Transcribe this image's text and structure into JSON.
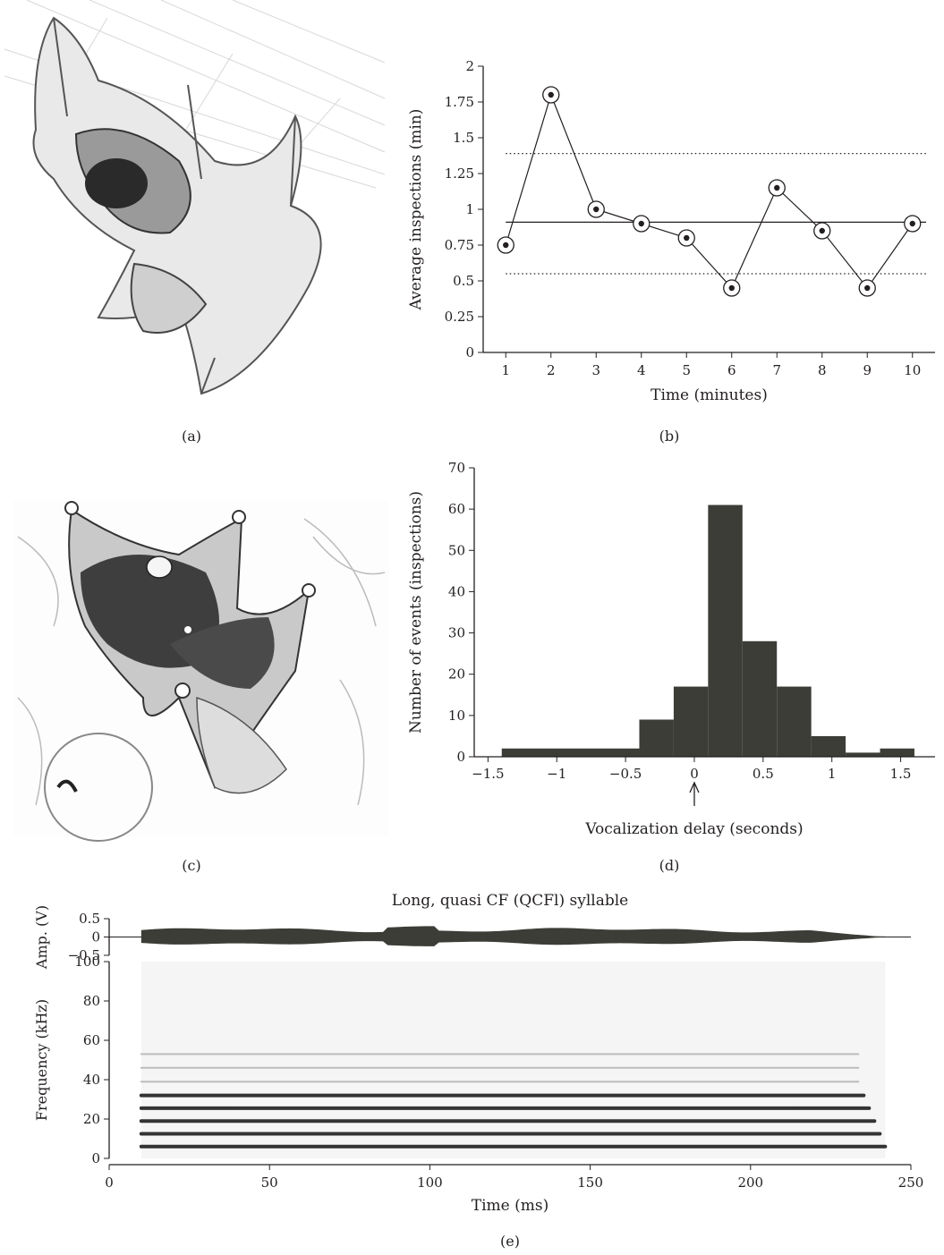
{
  "panels": {
    "a": {
      "label": "(a)"
    },
    "b": {
      "label": "(b)"
    },
    "c": {
      "label": "(c)"
    },
    "d": {
      "label": "(d)"
    },
    "e": {
      "label": "(e)"
    }
  },
  "chart_data": [
    {
      "id": "b",
      "type": "line",
      "title": "",
      "xlabel": "Time (minutes)",
      "ylabel": "Average inspections (min)",
      "x": [
        1,
        2,
        3,
        4,
        5,
        6,
        7,
        8,
        9,
        10
      ],
      "values": [
        0.75,
        1.8,
        1.0,
        0.9,
        0.8,
        0.45,
        1.15,
        0.85,
        0.45,
        0.9
      ],
      "xticks": [
        "1",
        "2",
        "3",
        "4",
        "5",
        "6",
        "7",
        "8",
        "9",
        "10"
      ],
      "yticks": [
        "0",
        "0.25",
        "0.5",
        "0.75",
        "1",
        "1.25",
        "1.5",
        "1.75",
        "2"
      ],
      "ylim": [
        0,
        2
      ],
      "xlim": [
        0.5,
        10.5
      ],
      "reference_lines": [
        {
          "style": "solid",
          "y": 0.91
        },
        {
          "style": "dotted",
          "y": 1.39
        },
        {
          "style": "dotted",
          "y": 0.55
        }
      ],
      "grid": false
    },
    {
      "id": "d",
      "type": "bar",
      "title": "",
      "xlabel": "Vocalization delay (seconds)",
      "ylabel": "Number of events (inspections)",
      "bins": [
        {
          "x0": -1.4,
          "x1": -0.4,
          "value": 2
        },
        {
          "x0": -0.4,
          "x1": -0.15,
          "value": 9
        },
        {
          "x0": -0.15,
          "x1": 0.1,
          "value": 17
        },
        {
          "x0": 0.1,
          "x1": 0.35,
          "value": 61
        },
        {
          "x0": 0.35,
          "x1": 0.6,
          "value": 28
        },
        {
          "x0": 0.6,
          "x1": 0.85,
          "value": 17
        },
        {
          "x0": 0.85,
          "x1": 1.1,
          "value": 5
        },
        {
          "x0": 1.1,
          "x1": 1.35,
          "value": 1
        },
        {
          "x0": 1.35,
          "x1": 1.6,
          "value": 2
        }
      ],
      "xticks": [
        "−1.5",
        "−1",
        "−0.5",
        "0",
        "0.5",
        "1",
        "1.5"
      ],
      "xtick_values": [
        -1.5,
        -1,
        -0.5,
        0,
        0.5,
        1,
        1.5
      ],
      "yticks": [
        "0",
        "10",
        "20",
        "30",
        "40",
        "50",
        "60",
        "70"
      ],
      "ylim": [
        0,
        70
      ],
      "xlim": [
        -1.6,
        1.75
      ],
      "annotation_arrow_at": 0,
      "grid": false
    },
    {
      "id": "e",
      "type": "heatmap",
      "title": "Long, quasi CF (QCFl) syllable",
      "xlabel": "Time (ms)",
      "xticks": [
        "0",
        "50",
        "100",
        "150",
        "200",
        "250"
      ],
      "xtick_values": [
        0,
        50,
        100,
        150,
        200,
        250
      ],
      "xlim": [
        0,
        250
      ],
      "amplitude": {
        "ylabel": "Amp. (V)",
        "yticks": [
          "0.5",
          "0",
          "−0.5"
        ],
        "ylim": [
          -0.5,
          0.5
        ]
      },
      "spectrogram": {
        "ylabel": "Frequency (kHz)",
        "yticks": [
          "0",
          "20",
          "40",
          "60",
          "80",
          "100"
        ],
        "ylim": [
          0,
          100
        ],
        "signal_time_range": [
          10,
          242
        ],
        "harmonics_khz": [
          6,
          12.5,
          19,
          25.5,
          32,
          39,
          46,
          53
        ]
      }
    }
  ]
}
